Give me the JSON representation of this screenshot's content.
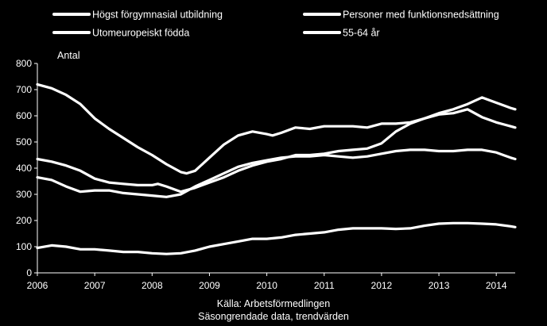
{
  "chart_data": {
    "type": "line",
    "title": "",
    "ylabel": "Antal",
    "xlabel": "",
    "ylim": [
      0,
      800
    ],
    "yticks": [
      0,
      100,
      200,
      300,
      400,
      500,
      600,
      700,
      800
    ],
    "xlim": [
      2006,
      2014.33
    ],
    "xticks": [
      2006,
      2007,
      2008,
      2009,
      2010,
      2011,
      2012,
      2013,
      2014
    ],
    "grid": false,
    "legend_position": "top",
    "legend": [
      "Högst förgymnasial utbildning",
      "Personer med funktionsnedsättning",
      "Utomeuropeiskt födda",
      "55-64 år"
    ],
    "source_lines": [
      "Källa: Arbetsförmedlingen",
      "Säsongrendade data, trendvärden"
    ],
    "series": [
      {
        "name": "Högst förgymnasial utbildning",
        "points": [
          [
            2006.0,
            720
          ],
          [
            2006.25,
            705
          ],
          [
            2006.5,
            680
          ],
          [
            2006.75,
            645
          ],
          [
            2007.0,
            590
          ],
          [
            2007.25,
            550
          ],
          [
            2007.5,
            515
          ],
          [
            2007.75,
            480
          ],
          [
            2008.0,
            450
          ],
          [
            2008.25,
            415
          ],
          [
            2008.5,
            385
          ],
          [
            2008.6,
            380
          ],
          [
            2008.75,
            390
          ],
          [
            2009.0,
            440
          ],
          [
            2009.25,
            490
          ],
          [
            2009.5,
            525
          ],
          [
            2009.75,
            540
          ],
          [
            2010.0,
            530
          ],
          [
            2010.1,
            525
          ],
          [
            2010.25,
            535
          ],
          [
            2010.5,
            555
          ],
          [
            2010.75,
            550
          ],
          [
            2011.0,
            560
          ],
          [
            2011.25,
            560
          ],
          [
            2011.5,
            560
          ],
          [
            2011.75,
            555
          ],
          [
            2012.0,
            570
          ],
          [
            2012.25,
            570
          ],
          [
            2012.5,
            575
          ],
          [
            2012.75,
            590
          ],
          [
            2013.0,
            605
          ],
          [
            2013.25,
            610
          ],
          [
            2013.5,
            625
          ],
          [
            2013.75,
            595
          ],
          [
            2014.0,
            575
          ],
          [
            2014.25,
            560
          ],
          [
            2014.33,
            555
          ]
        ]
      },
      {
        "name": "Personer med funktionsnedsättning",
        "points": [
          [
            2006.0,
            95
          ],
          [
            2006.25,
            105
          ],
          [
            2006.5,
            100
          ],
          [
            2006.75,
            90
          ],
          [
            2007.0,
            90
          ],
          [
            2007.25,
            85
          ],
          [
            2007.5,
            80
          ],
          [
            2007.75,
            80
          ],
          [
            2008.0,
            75
          ],
          [
            2008.25,
            72
          ],
          [
            2008.5,
            75
          ],
          [
            2008.75,
            85
          ],
          [
            2009.0,
            100
          ],
          [
            2009.25,
            110
          ],
          [
            2009.5,
            120
          ],
          [
            2009.75,
            130
          ],
          [
            2010.0,
            130
          ],
          [
            2010.25,
            135
          ],
          [
            2010.5,
            145
          ],
          [
            2010.75,
            150
          ],
          [
            2011.0,
            155
          ],
          [
            2011.25,
            165
          ],
          [
            2011.5,
            170
          ],
          [
            2011.75,
            170
          ],
          [
            2012.0,
            170
          ],
          [
            2012.25,
            168
          ],
          [
            2012.5,
            170
          ],
          [
            2012.75,
            180
          ],
          [
            2013.0,
            188
          ],
          [
            2013.25,
            190
          ],
          [
            2013.5,
            190
          ],
          [
            2013.75,
            188
          ],
          [
            2014.0,
            185
          ],
          [
            2014.25,
            178
          ],
          [
            2014.33,
            175
          ]
        ]
      },
      {
        "name": "Utomeuropeiskt födda",
        "points": [
          [
            2006.0,
            435
          ],
          [
            2006.25,
            425
          ],
          [
            2006.5,
            410
          ],
          [
            2006.75,
            390
          ],
          [
            2007.0,
            360
          ],
          [
            2007.25,
            345
          ],
          [
            2007.5,
            340
          ],
          [
            2007.75,
            335
          ],
          [
            2008.0,
            335
          ],
          [
            2008.1,
            340
          ],
          [
            2008.25,
            330
          ],
          [
            2008.5,
            310
          ],
          [
            2008.75,
            325
          ],
          [
            2009.0,
            345
          ],
          [
            2009.25,
            365
          ],
          [
            2009.5,
            390
          ],
          [
            2009.75,
            410
          ],
          [
            2010.0,
            425
          ],
          [
            2010.25,
            435
          ],
          [
            2010.5,
            450
          ],
          [
            2010.75,
            450
          ],
          [
            2011.0,
            455
          ],
          [
            2011.25,
            465
          ],
          [
            2011.5,
            470
          ],
          [
            2011.75,
            475
          ],
          [
            2012.0,
            495
          ],
          [
            2012.25,
            540
          ],
          [
            2012.5,
            570
          ],
          [
            2012.75,
            590
          ],
          [
            2013.0,
            610
          ],
          [
            2013.25,
            625
          ],
          [
            2013.5,
            645
          ],
          [
            2013.75,
            670
          ],
          [
            2014.0,
            650
          ],
          [
            2014.25,
            630
          ],
          [
            2014.33,
            625
          ]
        ]
      },
      {
        "name": "55-64 år",
        "points": [
          [
            2006.0,
            365
          ],
          [
            2006.25,
            355
          ],
          [
            2006.5,
            330
          ],
          [
            2006.75,
            310
          ],
          [
            2007.0,
            315
          ],
          [
            2007.25,
            315
          ],
          [
            2007.5,
            305
          ],
          [
            2007.75,
            300
          ],
          [
            2008.0,
            295
          ],
          [
            2008.25,
            290
          ],
          [
            2008.5,
            300
          ],
          [
            2008.75,
            330
          ],
          [
            2009.0,
            355
          ],
          [
            2009.25,
            380
          ],
          [
            2009.5,
            405
          ],
          [
            2009.75,
            420
          ],
          [
            2010.0,
            430
          ],
          [
            2010.25,
            440
          ],
          [
            2010.5,
            445
          ],
          [
            2010.75,
            445
          ],
          [
            2011.0,
            450
          ],
          [
            2011.25,
            445
          ],
          [
            2011.5,
            440
          ],
          [
            2011.75,
            445
          ],
          [
            2012.0,
            455
          ],
          [
            2012.25,
            465
          ],
          [
            2012.5,
            470
          ],
          [
            2012.75,
            470
          ],
          [
            2013.0,
            465
          ],
          [
            2013.25,
            465
          ],
          [
            2013.5,
            470
          ],
          [
            2013.75,
            470
          ],
          [
            2014.0,
            460
          ],
          [
            2014.25,
            440
          ],
          [
            2014.33,
            435
          ]
        ]
      }
    ]
  }
}
